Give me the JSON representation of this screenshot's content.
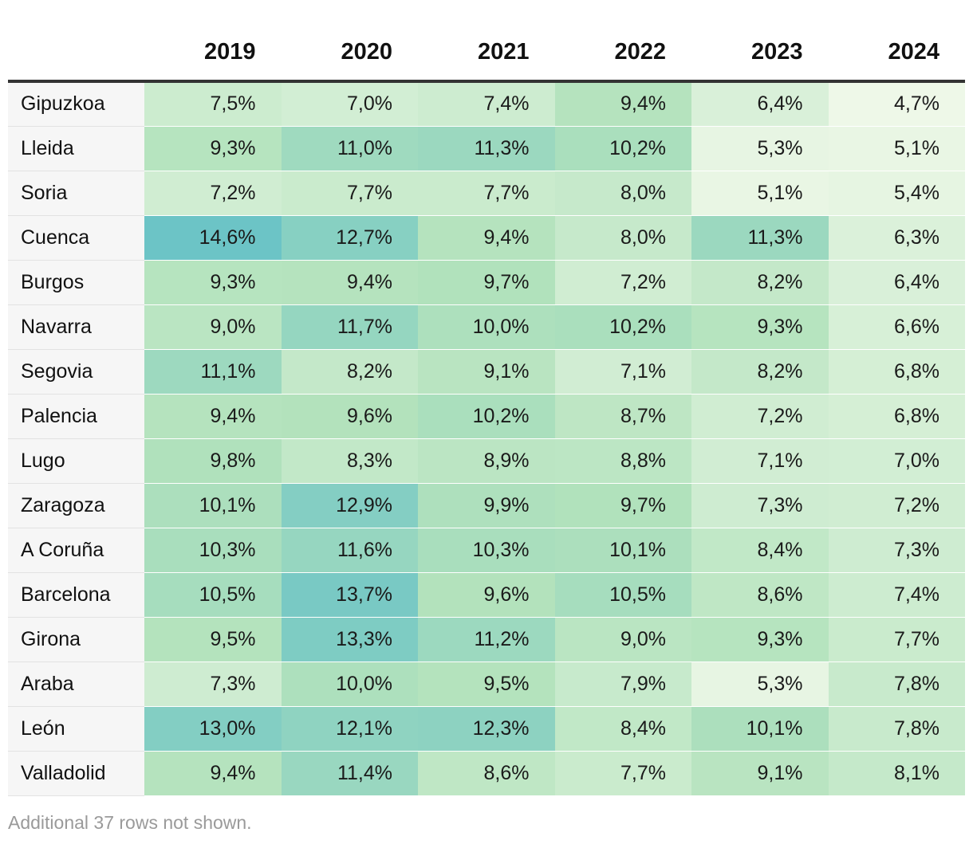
{
  "chart_data": {
    "type": "table",
    "columns": [
      "",
      "2019",
      "2020",
      "2021",
      "2022",
      "2023",
      "2024"
    ],
    "rows": [
      {
        "name": "Gipuzkoa",
        "values": [
          "7,5%",
          "7,0%",
          "7,4%",
          "9,4%",
          "6,4%",
          "4,7%"
        ]
      },
      {
        "name": "Lleida",
        "values": [
          "9,3%",
          "11,0%",
          "11,3%",
          "10,2%",
          "5,3%",
          "5,1%"
        ]
      },
      {
        "name": "Soria",
        "values": [
          "7,2%",
          "7,7%",
          "7,7%",
          "8,0%",
          "5,1%",
          "5,4%"
        ]
      },
      {
        "name": "Cuenca",
        "values": [
          "14,6%",
          "12,7%",
          "9,4%",
          "8,0%",
          "11,3%",
          "6,3%"
        ]
      },
      {
        "name": "Burgos",
        "values": [
          "9,3%",
          "9,4%",
          "9,7%",
          "7,2%",
          "8,2%",
          "6,4%"
        ]
      },
      {
        "name": "Navarra",
        "values": [
          "9,0%",
          "11,7%",
          "10,0%",
          "10,2%",
          "9,3%",
          "6,6%"
        ]
      },
      {
        "name": "Segovia",
        "values": [
          "11,1%",
          "8,2%",
          "9,1%",
          "7,1%",
          "8,2%",
          "6,8%"
        ]
      },
      {
        "name": "Palencia",
        "values": [
          "9,4%",
          "9,6%",
          "10,2%",
          "8,7%",
          "7,2%",
          "6,8%"
        ]
      },
      {
        "name": "Lugo",
        "values": [
          "9,8%",
          "8,3%",
          "8,9%",
          "8,8%",
          "7,1%",
          "7,0%"
        ]
      },
      {
        "name": "Zaragoza",
        "values": [
          "10,1%",
          "12,9%",
          "9,9%",
          "9,7%",
          "7,3%",
          "7,2%"
        ]
      },
      {
        "name": "A Coruña",
        "values": [
          "10,3%",
          "11,6%",
          "10,3%",
          "10,1%",
          "8,4%",
          "7,3%"
        ]
      },
      {
        "name": "Barcelona",
        "values": [
          "10,5%",
          "13,7%",
          "9,6%",
          "10,5%",
          "8,6%",
          "7,4%"
        ]
      },
      {
        "name": "Girona",
        "values": [
          "9,5%",
          "13,3%",
          "11,2%",
          "9,0%",
          "9,3%",
          "7,7%"
        ]
      },
      {
        "name": "Araba",
        "values": [
          "7,3%",
          "10,0%",
          "9,5%",
          "7,9%",
          "5,3%",
          "7,8%"
        ]
      },
      {
        "name": "León",
        "values": [
          "13,0%",
          "12,1%",
          "12,3%",
          "8,4%",
          "10,1%",
          "7,8%"
        ]
      },
      {
        "name": "Valladolid",
        "values": [
          "9,4%",
          "11,4%",
          "8,6%",
          "7,7%",
          "9,1%",
          "8,1%"
        ]
      }
    ],
    "color_scale": {
      "min": 4.7,
      "max": 14.6,
      "low_color": "#eef8e8",
      "mid_color": "#b2e2bc",
      "high_color": "#6cc4c6"
    },
    "note": "Additional 37 rows not shown."
  }
}
